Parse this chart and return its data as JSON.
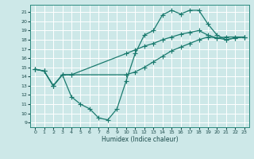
{
  "xlabel": "Humidex (Indice chaleur)",
  "bg_color": "#cde8e8",
  "grid_color": "#ffffff",
  "line_color": "#1a7a6e",
  "xlim": [
    -0.5,
    23.5
  ],
  "ylim": [
    8.5,
    21.8
  ],
  "xticks": [
    0,
    1,
    2,
    3,
    4,
    5,
    6,
    7,
    8,
    9,
    10,
    11,
    12,
    13,
    14,
    15,
    16,
    17,
    18,
    19,
    20,
    21,
    22,
    23
  ],
  "yticks": [
    9,
    10,
    11,
    12,
    13,
    14,
    15,
    16,
    17,
    18,
    19,
    20,
    21
  ],
  "line1_x": [
    0,
    1,
    2,
    3,
    4,
    5,
    6,
    7,
    8,
    9,
    10,
    11,
    12,
    13,
    14,
    15,
    16,
    17,
    18,
    19,
    20,
    21,
    22,
    23
  ],
  "line1_y": [
    14.8,
    14.6,
    13.0,
    14.2,
    11.8,
    11.0,
    10.5,
    9.5,
    9.3,
    10.5,
    13.5,
    16.5,
    18.5,
    19.0,
    20.7,
    21.2,
    20.8,
    21.2,
    21.2,
    19.7,
    18.5,
    18.0,
    18.2,
    18.3
  ],
  "line2_x": [
    0,
    1,
    2,
    3,
    4,
    10,
    11,
    12,
    13,
    14,
    15,
    16,
    17,
    18,
    19,
    20,
    21,
    22,
    23
  ],
  "line2_y": [
    14.8,
    14.6,
    13.0,
    14.2,
    14.2,
    16.5,
    16.9,
    17.3,
    17.6,
    18.0,
    18.3,
    18.6,
    18.8,
    19.0,
    18.5,
    18.2,
    18.3,
    18.3,
    18.3
  ],
  "line3_x": [
    0,
    1,
    2,
    3,
    4,
    10,
    11,
    12,
    13,
    14,
    15,
    16,
    17,
    18,
    19,
    20,
    21,
    22,
    23
  ],
  "line3_y": [
    14.8,
    14.6,
    13.0,
    14.2,
    14.2,
    14.2,
    14.5,
    15.0,
    15.6,
    16.2,
    16.8,
    17.2,
    17.6,
    18.0,
    18.3,
    18.2,
    18.0,
    18.2,
    18.3
  ]
}
